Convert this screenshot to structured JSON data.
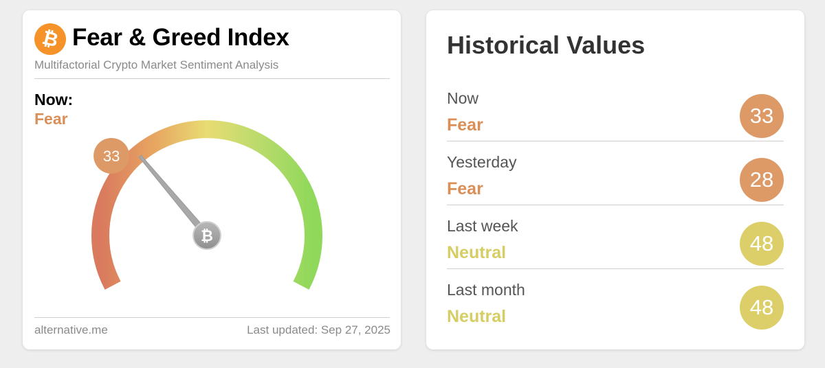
{
  "widget": {
    "title": "Fear & Greed Index",
    "subtitle": "Multifactorial Crypto Market Sentiment Analysis",
    "logo_icon": "bitcoin-icon",
    "logo_glyph": "₿",
    "now_label": "Now:",
    "now_status": "Fear",
    "gauge": {
      "value": 33,
      "min": 0,
      "max": 100,
      "value_text": "33",
      "needle_hub_icon": "bitcoin-icon",
      "needle_hub_glyph": "₿",
      "colors": {
        "extreme_fear": "#d9795e",
        "fear": "#e8a561",
        "neutral": "#e8dc73",
        "greed": "#b9db6c",
        "extreme_greed": "#8fd85a",
        "bubble": "#dd9966",
        "needle": "#a8a8a8"
      }
    },
    "footer_source": "alternative.me",
    "footer_updated": "Last updated: Sep 27, 2025"
  },
  "history": {
    "title": "Historical Values",
    "rows": [
      {
        "label": "Now",
        "status": "Fear",
        "value": "33",
        "status_color": "#d98f57",
        "circle_color": "#dd9966"
      },
      {
        "label": "Yesterday",
        "status": "Fear",
        "value": "28",
        "status_color": "#d98f57",
        "circle_color": "#dd9966"
      },
      {
        "label": "Last week",
        "status": "Neutral",
        "value": "48",
        "status_color": "#d6cd63",
        "circle_color": "#dccf6a"
      },
      {
        "label": "Last month",
        "status": "Neutral",
        "value": "48",
        "status_color": "#d6cd63",
        "circle_color": "#dccf6a"
      }
    ]
  }
}
